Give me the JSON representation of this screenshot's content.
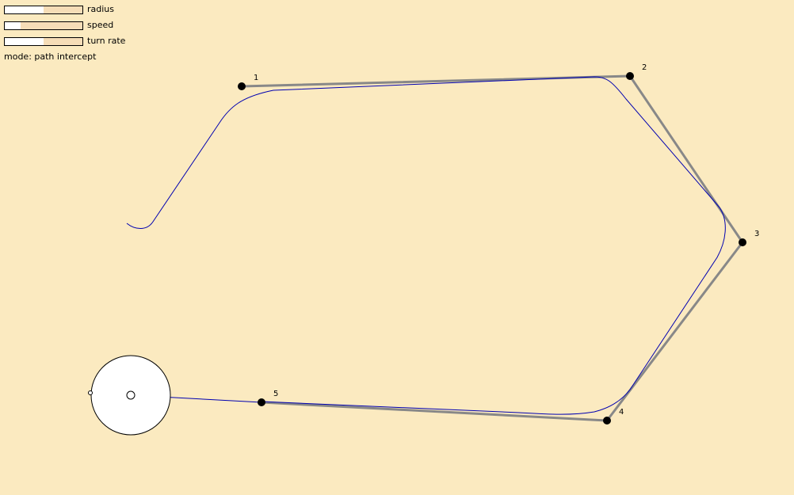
{
  "controls": {
    "radius": {
      "label": "radius",
      "value": 0.5
    },
    "speed": {
      "label": "speed",
      "value": 0.2
    },
    "turn_rate": {
      "label": "turn rate",
      "value": 0.5
    }
  },
  "mode": {
    "text": "mode: path intercept"
  },
  "waypoints": [
    {
      "label": "1"
    },
    {
      "label": "2"
    },
    {
      "label": "3"
    },
    {
      "label": "4"
    },
    {
      "label": "5"
    }
  ],
  "colors": {
    "background": "#fbeac0",
    "path_segment": "#888888",
    "trajectory": "#0000b0",
    "waypoint": "#000000",
    "agent_body": "#ffffff"
  }
}
